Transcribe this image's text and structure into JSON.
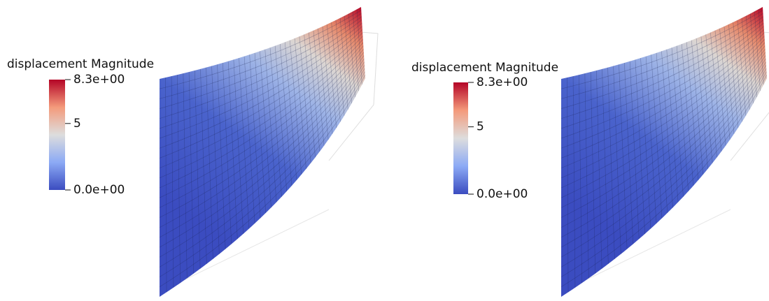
{
  "panels": [
    {
      "colorbar": {
        "title": "displacement Magnitude",
        "min": {
          "value": 0,
          "label": "0.0e+00"
        },
        "max": {
          "value": 8.3,
          "label": "8.3e+00"
        },
        "ticks": [
          5
        ]
      }
    },
    {
      "colorbar": {
        "title": "displacement Magnitude",
        "min": {
          "value": 0,
          "label": "0.0e+00"
        },
        "max": {
          "value": 8.3,
          "label": "8.3e+00"
        },
        "ticks": [
          5
        ]
      }
    }
  ]
}
